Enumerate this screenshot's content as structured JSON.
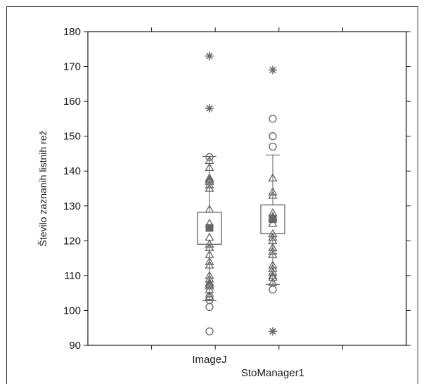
{
  "chart_data": {
    "type": "boxplot",
    "title": "",
    "xlabel": "",
    "ylabel": "Število zaznanih listnih rež",
    "ylim": [
      90,
      180
    ],
    "yticks": [
      90,
      100,
      110,
      120,
      130,
      140,
      150,
      160,
      170,
      180
    ],
    "grid": false,
    "legend": "none",
    "categories": [
      "ImageJ",
      "StoManager1"
    ],
    "series": [
      {
        "mean": 123.7,
        "box": [
          119,
          128.2
        ],
        "whiskers": [
          102.8,
          144.2
        ],
        "points": [
          104,
          106,
          107,
          107.5,
          108,
          109,
          110,
          113,
          114,
          116,
          118,
          119,
          121,
          125,
          129,
          135,
          136,
          137,
          137.5,
          138,
          141,
          143
        ],
        "outliers": [
          94,
          101,
          103,
          104,
          144
        ],
        "extremes": [
          158,
          173
        ]
      },
      {
        "mean": 126.2,
        "box": [
          122,
          130.3
        ],
        "whiskers": [
          107.5,
          144.6
        ],
        "points": [
          108,
          109.5,
          110,
          111,
          112,
          113,
          116,
          117,
          118,
          120,
          121,
          122,
          125,
          126.5,
          127,
          128,
          133,
          134,
          138
        ],
        "outliers": [
          106,
          147,
          150,
          155
        ],
        "extremes": [
          94,
          169
        ]
      }
    ],
    "colors": {
      "marker": "#666666",
      "box": "#555555",
      "axis": "#1a1a1a"
    }
  }
}
